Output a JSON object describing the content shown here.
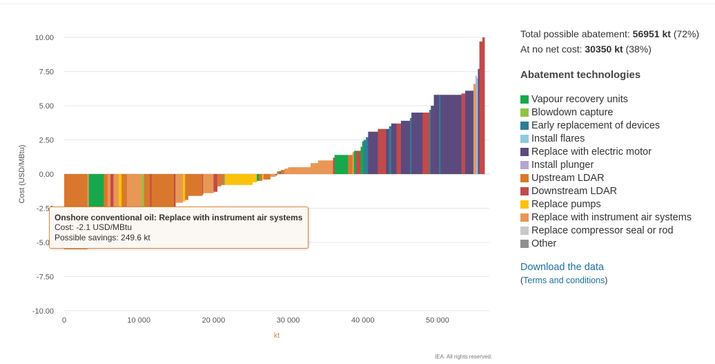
{
  "summary": {
    "total_label": "Total possible abatement: ",
    "total_value": "56951 kt",
    "total_pct": " (72%)",
    "nocost_label": "At no net cost: ",
    "nocost_value": "30350 kt",
    "nocost_pct": " (38%)"
  },
  "legend": {
    "title": "Abatement technologies",
    "items": [
      {
        "label": "Vapour recovery units",
        "color": "#16a84c"
      },
      {
        "label": "Blowdown capture",
        "color": "#8dc63f"
      },
      {
        "label": "Early replacement of devices",
        "color": "#2e7f94"
      },
      {
        "label": "Install flares",
        "color": "#8ecbdc"
      },
      {
        "label": "Replace with electric motor",
        "color": "#5b4a7e"
      },
      {
        "label": "Install plunger",
        "color": "#b3a6cf"
      },
      {
        "label": "Upstream LDAR",
        "color": "#d9782d"
      },
      {
        "label": "Downstream LDAR",
        "color": "#c34a4a"
      },
      {
        "label": "Replace pumps",
        "color": "#fbc20a"
      },
      {
        "label": "Replace with instrument air systems",
        "color": "#e99755"
      },
      {
        "label": "Replace compressor seal or rod",
        "color": "#c8c8c8"
      },
      {
        "label": "Other",
        "color": "#8f8f8f"
      }
    ]
  },
  "links": {
    "download": "Download the data",
    "terms_open": "(",
    "terms": "Terms and conditions",
    "terms_close": ")"
  },
  "tooltip": {
    "title": "Onshore conventional oil: Replace with instrument air systems",
    "cost": "Cost: -2.1 USD/MBtu",
    "savings": "Possible savings: 249.6 kt"
  },
  "credit": "IEA. All rights reserved.",
  "chart_data": {
    "type": "bar",
    "subtype": "marginal abatement cost curve (variable-width bars)",
    "xlabel": "kt",
    "ylabel": "Cost (USD/MBtu)",
    "xlim": [
      0,
      57000
    ],
    "ylim": [
      -10,
      10
    ],
    "x_ticks": [
      "0",
      "10 000",
      "20 000",
      "30 000",
      "40 000",
      "50 000"
    ],
    "x_tick_values": [
      0,
      10000,
      20000,
      30000,
      40000,
      50000
    ],
    "y_ticks": [
      "10.00",
      "7.50",
      "5.00",
      "2.50",
      "0.00",
      "-2.50",
      "-5.00",
      "-7.50",
      "-10.00"
    ],
    "y_tick_values": [
      10,
      7.5,
      5,
      2.5,
      0,
      -2.5,
      -5,
      -7.5,
      -10
    ],
    "grid": true,
    "segments": [
      {
        "x0": 0,
        "width": 3100,
        "cost": -5.5,
        "tech": "Upstream LDAR"
      },
      {
        "x0": 3100,
        "width": 200,
        "cost": -4.6,
        "tech": "Replace with instrument air systems"
      },
      {
        "x0": 3300,
        "width": 2000,
        "cost": -3.3,
        "tech": "Vapour recovery units"
      },
      {
        "x0": 5300,
        "width": 500,
        "cost": -3.1,
        "tech": "Upstream LDAR"
      },
      {
        "x0": 5800,
        "width": 400,
        "cost": -3.0,
        "tech": "Replace with instrument air systems"
      },
      {
        "x0": 6200,
        "width": 400,
        "cost": -3.0,
        "tech": "Downstream LDAR"
      },
      {
        "x0": 6600,
        "width": 700,
        "cost": -3.0,
        "tech": "Replace with instrument air systems"
      },
      {
        "x0": 7300,
        "width": 400,
        "cost": -2.9,
        "tech": "Replace pumps"
      },
      {
        "x0": 7700,
        "width": 700,
        "cost": -2.8,
        "tech": "Upstream LDAR"
      },
      {
        "x0": 8400,
        "width": 2000,
        "cost": -2.7,
        "tech": "Replace with instrument air systems"
      },
      {
        "x0": 10400,
        "width": 300,
        "cost": -2.6,
        "tech": "Blowdown capture"
      },
      {
        "x0": 10700,
        "width": 800,
        "cost": -2.6,
        "tech": "Upstream LDAR"
      },
      {
        "x0": 11500,
        "width": 200,
        "cost": -2.5,
        "tech": "Downstream LDAR"
      },
      {
        "x0": 11700,
        "width": 3000,
        "cost": -2.5,
        "tech": "Upstream LDAR"
      },
      {
        "x0": 14700,
        "width": 200,
        "cost": -2.4,
        "tech": "Downstream LDAR"
      },
      {
        "x0": 14900,
        "width": 1000,
        "cost": -2.1,
        "tech": "Replace with instrument air systems"
      },
      {
        "x0": 15900,
        "width": 300,
        "cost": -2.0,
        "tech": "Replace pumps"
      },
      {
        "x0": 16200,
        "width": 400,
        "cost": -1.9,
        "tech": "Upstream LDAR"
      },
      {
        "x0": 16600,
        "width": 1900,
        "cost": -1.6,
        "tech": "Upstream LDAR"
      },
      {
        "x0": 18500,
        "width": 100,
        "cost": -1.5,
        "tech": "Downstream LDAR"
      },
      {
        "x0": 18600,
        "width": 1400,
        "cost": -1.4,
        "tech": "Replace with instrument air systems"
      },
      {
        "x0": 20000,
        "width": 500,
        "cost": -1.3,
        "tech": "Downstream LDAR"
      },
      {
        "x0": 20500,
        "width": 500,
        "cost": -0.9,
        "tech": "Upstream LDAR"
      },
      {
        "x0": 21000,
        "width": 300,
        "cost": -0.8,
        "tech": "Upstream LDAR"
      },
      {
        "x0": 21300,
        "width": 200,
        "cost": -0.8,
        "tech": "Other"
      },
      {
        "x0": 21500,
        "width": 3700,
        "cost": -0.8,
        "tech": "Replace pumps"
      },
      {
        "x0": 25200,
        "width": 600,
        "cost": -0.6,
        "tech": "Replace pumps"
      },
      {
        "x0": 25800,
        "width": 300,
        "cost": -0.5,
        "tech": "Vapour recovery units"
      },
      {
        "x0": 26100,
        "width": 400,
        "cost": -0.5,
        "tech": "Upstream LDAR"
      },
      {
        "x0": 26500,
        "width": 200,
        "cost": -0.4,
        "tech": "Replace pumps"
      },
      {
        "x0": 26700,
        "width": 900,
        "cost": -0.4,
        "tech": "Upstream LDAR"
      },
      {
        "x0": 27600,
        "width": 700,
        "cost": -0.2,
        "tech": "Replace with instrument air systems"
      },
      {
        "x0": 28300,
        "width": 200,
        "cost": -0.1,
        "tech": "Downstream LDAR"
      },
      {
        "x0": 28500,
        "width": 300,
        "cost": 0.2,
        "tech": "Upstream LDAR"
      },
      {
        "x0": 28800,
        "width": 200,
        "cost": 0.2,
        "tech": "Early replacement of devices"
      },
      {
        "x0": 29000,
        "width": 500,
        "cost": 0.3,
        "tech": "Upstream LDAR"
      },
      {
        "x0": 29500,
        "width": 500,
        "cost": 0.4,
        "tech": "Replace with instrument air systems"
      },
      {
        "x0": 30000,
        "width": 3000,
        "cost": 0.5,
        "tech": "Replace with instrument air systems"
      },
      {
        "x0": 33000,
        "width": 1000,
        "cost": 0.8,
        "tech": "Replace with instrument air systems"
      },
      {
        "x0": 34000,
        "width": 2000,
        "cost": 1.0,
        "tech": "Replace with instrument air systems"
      },
      {
        "x0": 36000,
        "width": 200,
        "cost": 1.2,
        "tech": "Downstream LDAR"
      },
      {
        "x0": 36200,
        "width": 1800,
        "cost": 1.4,
        "tech": "Vapour recovery units"
      },
      {
        "x0": 38000,
        "width": 600,
        "cost": 1.4,
        "tech": "Upstream LDAR"
      },
      {
        "x0": 38600,
        "width": 200,
        "cost": 1.6,
        "tech": "Replace with instrument air systems"
      },
      {
        "x0": 38800,
        "width": 300,
        "cost": 1.7,
        "tech": "Vapour recovery units"
      },
      {
        "x0": 39100,
        "width": 600,
        "cost": 1.7,
        "tech": "Downstream LDAR"
      },
      {
        "x0": 39700,
        "width": 200,
        "cost": 2.0,
        "tech": "Vapour recovery units"
      },
      {
        "x0": 39900,
        "width": 200,
        "cost": 2.4,
        "tech": "Vapour recovery units"
      },
      {
        "x0": 40100,
        "width": 300,
        "cost": 2.5,
        "tech": "Early replacement of devices"
      },
      {
        "x0": 40400,
        "width": 300,
        "cost": 2.7,
        "tech": "Early replacement of devices"
      },
      {
        "x0": 40700,
        "width": 1300,
        "cost": 3.1,
        "tech": "Replace with electric motor"
      },
      {
        "x0": 42000,
        "width": 1100,
        "cost": 3.3,
        "tech": "Downstream LDAR"
      },
      {
        "x0": 43100,
        "width": 400,
        "cost": 3.3,
        "tech": "Replace with electric motor"
      },
      {
        "x0": 43500,
        "width": 300,
        "cost": 3.5,
        "tech": "Early replacement of devices"
      },
      {
        "x0": 43800,
        "width": 700,
        "cost": 3.7,
        "tech": "Replace with electric motor"
      },
      {
        "x0": 44500,
        "width": 600,
        "cost": 3.7,
        "tech": "Downstream LDAR"
      },
      {
        "x0": 45100,
        "width": 1200,
        "cost": 3.9,
        "tech": "Replace with electric motor"
      },
      {
        "x0": 46300,
        "width": 200,
        "cost": 4.1,
        "tech": "Early replacement of devices"
      },
      {
        "x0": 46500,
        "width": 1500,
        "cost": 4.5,
        "tech": "Replace with electric motor"
      },
      {
        "x0": 48000,
        "width": 900,
        "cost": 4.5,
        "tech": "Downstream LDAR"
      },
      {
        "x0": 48900,
        "width": 200,
        "cost": 4.7,
        "tech": "Early replacement of devices"
      },
      {
        "x0": 49100,
        "width": 400,
        "cost": 5.0,
        "tech": "Replace with electric motor"
      },
      {
        "x0": 49500,
        "width": 700,
        "cost": 5.8,
        "tech": "Replace with electric motor"
      },
      {
        "x0": 50200,
        "width": 200,
        "cost": 5.8,
        "tech": "Early replacement of devices"
      },
      {
        "x0": 50400,
        "width": 2800,
        "cost": 5.8,
        "tech": "Replace with electric motor"
      },
      {
        "x0": 53200,
        "width": 500,
        "cost": 5.9,
        "tech": "Downstream LDAR"
      },
      {
        "x0": 53700,
        "width": 1100,
        "cost": 6.1,
        "tech": "Replace with electric motor"
      },
      {
        "x0": 54800,
        "width": 300,
        "cost": 6.6,
        "tech": "Replace with instrument air systems"
      },
      {
        "x0": 55100,
        "width": 150,
        "cost": 7.2,
        "tech": "Install plunger"
      },
      {
        "x0": 55250,
        "width": 150,
        "cost": 7.0,
        "tech": "Install flares"
      },
      {
        "x0": 55400,
        "width": 200,
        "cost": 7.7,
        "tech": "Replace with electric motor"
      },
      {
        "x0": 55600,
        "width": 400,
        "cost": 9.7,
        "tech": "Downstream LDAR"
      },
      {
        "x0": 56000,
        "width": 300,
        "cost": 10.0,
        "tech": "Downstream LDAR"
      }
    ]
  }
}
